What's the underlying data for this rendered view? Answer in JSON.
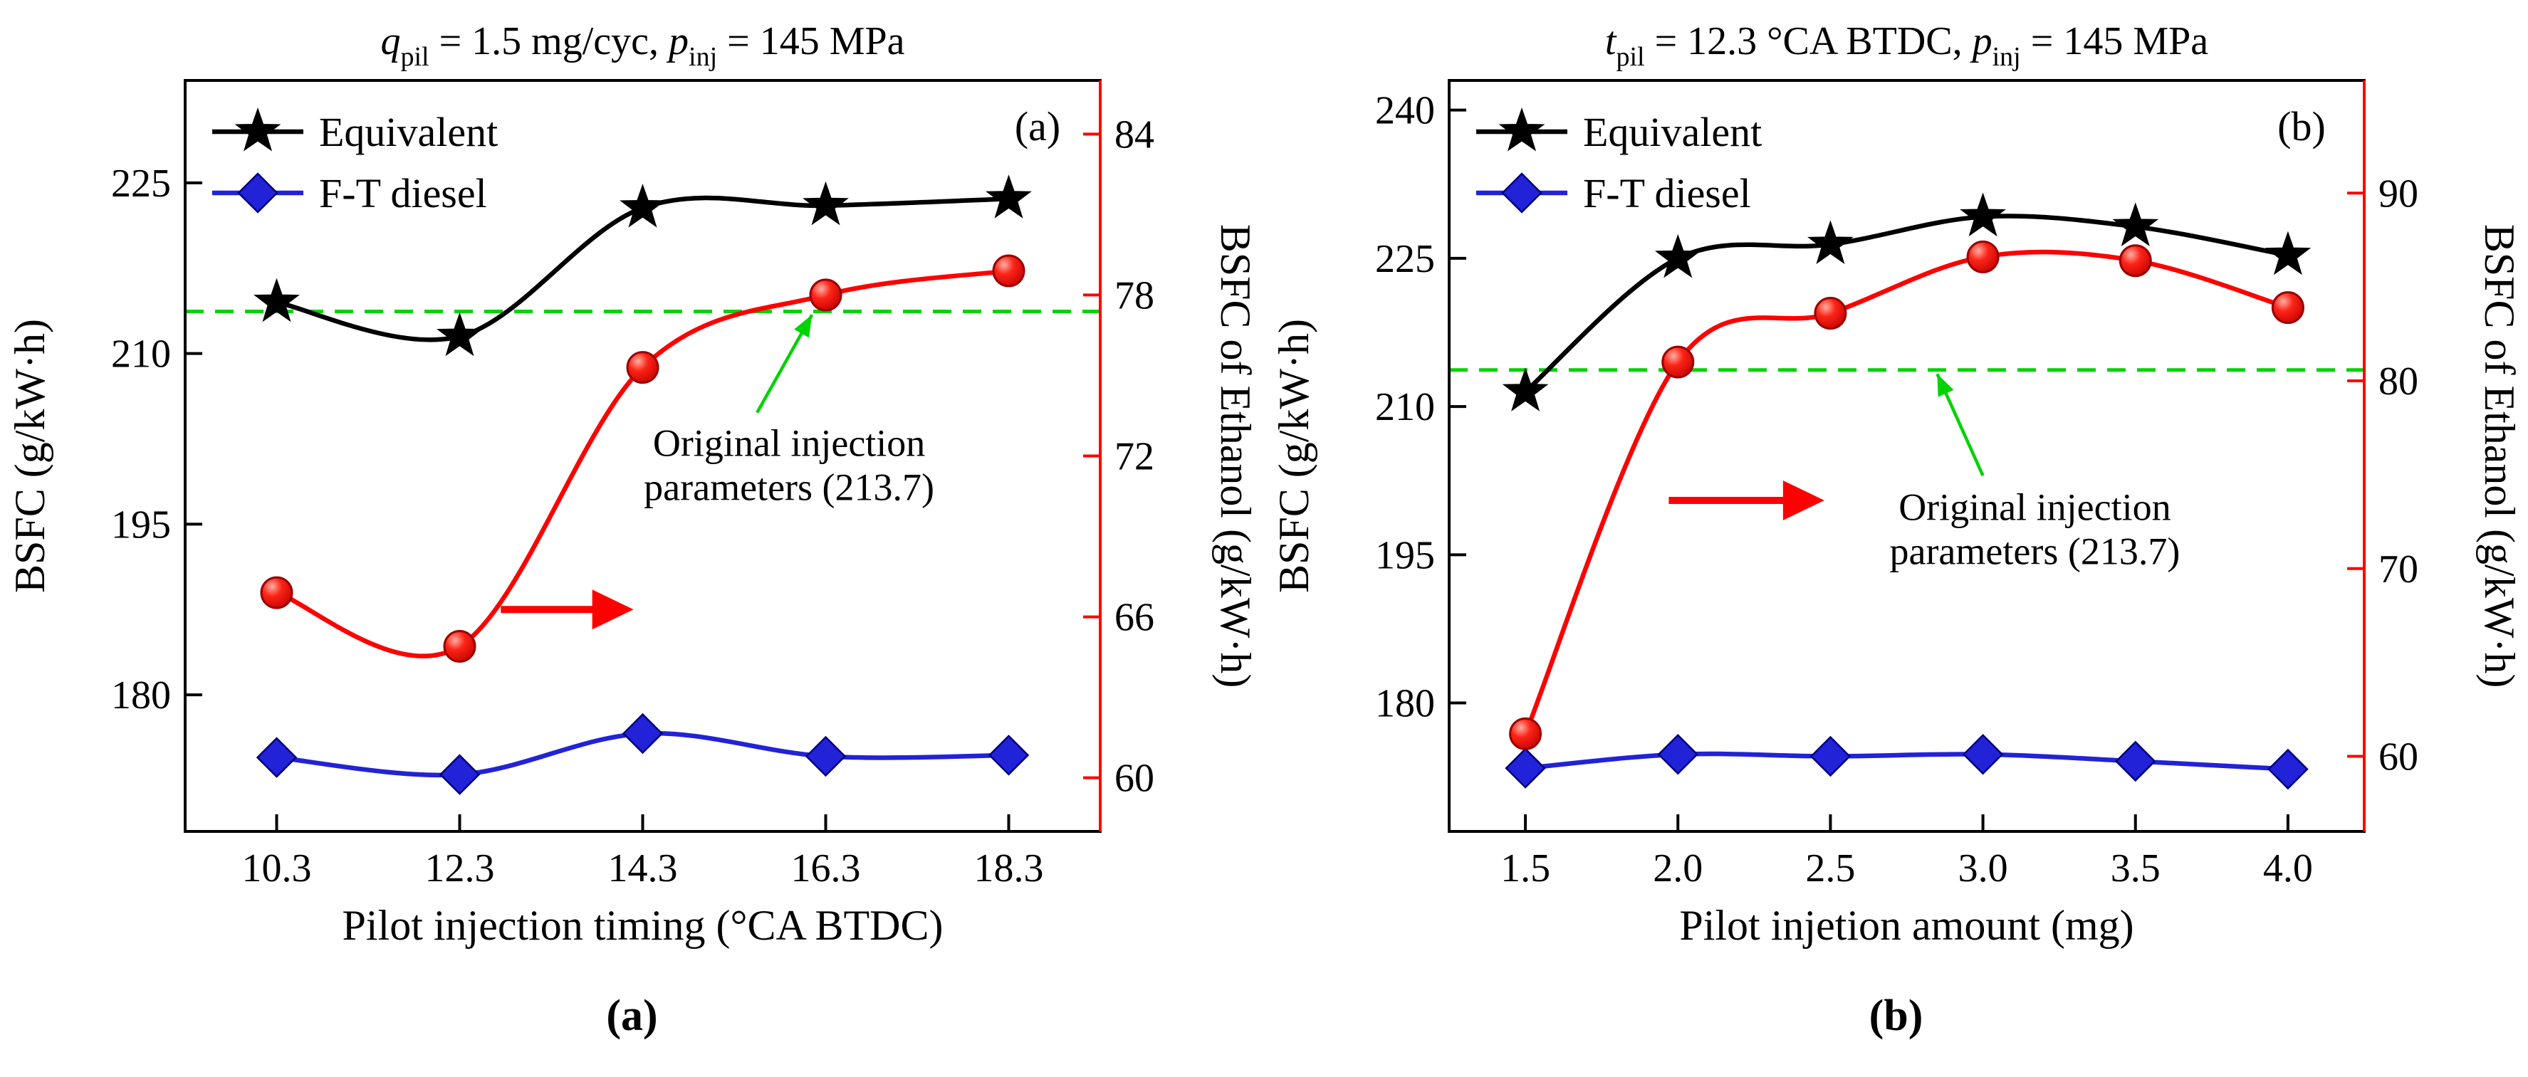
{
  "colors": {
    "black": "#000000",
    "red": "#ff0000",
    "red_dark": "#990000",
    "blue": "#2222d8",
    "blue_dark": "#000080",
    "green": "#00d300",
    "white": "#ffffff"
  },
  "chart_data": [
    {
      "type": "line",
      "caption": "(a)",
      "corner_label": "(a)",
      "title_parts": [
        {
          "text": "q",
          "italic": true
        },
        {
          "text": "pil",
          "sub": true
        },
        {
          "text": " = 1.5 mg/cyc, "
        },
        {
          "text": "p",
          "italic": true
        },
        {
          "text": "inj",
          "sub": true
        },
        {
          "text": " = 145 MPa"
        }
      ],
      "x_axis": {
        "label": "Pilot injection timing (°CA BTDC)",
        "lim": [
          9.3,
          19.3
        ],
        "ticks": [
          10.3,
          12.3,
          14.3,
          16.3,
          18.3
        ],
        "tick_labels": [
          "10.3",
          "12.3",
          "14.3",
          "16.3",
          "18.3"
        ]
      },
      "y_left": {
        "label": "BSFC (g/kW·h)",
        "lim": [
          168,
          234
        ],
        "ticks": [
          180,
          195,
          210,
          225
        ],
        "tick_labels": [
          "180",
          "195",
          "210",
          "225"
        ]
      },
      "y_right": {
        "label": "BSFC of Ethanol (g/kW·h)",
        "lim": [
          58,
          86
        ],
        "ticks": [
          60,
          66,
          72,
          78,
          84
        ],
        "tick_labels": [
          "60",
          "66",
          "72",
          "78",
          "84"
        ]
      },
      "series": [
        {
          "name": "Equivalent",
          "axis": "left",
          "marker": "star",
          "color": "#000000",
          "in_legend": true,
          "values": [
            214.5,
            211.5,
            222.8,
            223.0,
            223.6
          ]
        },
        {
          "name": "F-T diesel",
          "axis": "left",
          "marker": "diamond",
          "color": "#2222d8",
          "in_legend": true,
          "values": [
            174.5,
            173.0,
            176.6,
            174.6,
            174.7
          ]
        },
        {
          "name": "BSFC of Ethanol",
          "axis": "right",
          "marker": "circle",
          "color": "#ff0000",
          "in_legend": false,
          "values": [
            66.9,
            64.9,
            75.3,
            78.0,
            78.9
          ]
        }
      ],
      "reference_line": {
        "axis": "left",
        "value": 213.7
      },
      "annotation": {
        "lines": [
          "Original injection",
          "parameters (213.7)"
        ],
        "x": 15.9,
        "y_left": 201,
        "arrow_tail": [
          15.55,
          204.8
        ],
        "arrow_tip": [
          16.15,
          213.4
        ]
      },
      "axis_arrow": {
        "x1": 12.75,
        "x2": 14.2,
        "y_left": 187.5
      }
    },
    {
      "type": "line",
      "caption": "(b)",
      "corner_label": "(b)",
      "title_parts": [
        {
          "text": "t",
          "italic": true
        },
        {
          "text": "pil",
          "sub": true
        },
        {
          "text": " = 12.3 °CA BTDC, "
        },
        {
          "text": "p",
          "italic": true
        },
        {
          "text": "inj",
          "sub": true
        },
        {
          "text": " = 145 MPa"
        }
      ],
      "x_axis": {
        "label": "Pilot injetion amount (mg)",
        "lim": [
          1.25,
          4.25
        ],
        "ticks": [
          1.5,
          2.0,
          2.5,
          3.0,
          3.5,
          4.0
        ],
        "tick_labels": [
          "1.5",
          "2.0",
          "2.5",
          "3.0",
          "3.5",
          "4.0"
        ]
      },
      "y_left": {
        "label": "BSFC (g/kW·h)",
        "lim": [
          167,
          243
        ],
        "ticks": [
          180,
          195,
          210,
          225,
          240
        ],
        "tick_labels": [
          "180",
          "195",
          "210",
          "225",
          "240"
        ]
      },
      "y_right": {
        "label": "BSFC of Ethanol (g/kW·h)",
        "lim": [
          56,
          96
        ],
        "ticks": [
          60,
          70,
          80,
          90
        ],
        "tick_labels": [
          "60",
          "70",
          "80",
          "90"
        ]
      },
      "series": [
        {
          "name": "Equivalent",
          "axis": "left",
          "marker": "star",
          "color": "#000000",
          "in_legend": true,
          "values": [
            211.5,
            225.0,
            226.4,
            229.2,
            228.2,
            225.3
          ]
        },
        {
          "name": "F-T diesel",
          "axis": "left",
          "marker": "diamond",
          "color": "#2222d8",
          "in_legend": true,
          "values": [
            173.4,
            174.8,
            174.6,
            174.8,
            174.1,
            173.3
          ]
        },
        {
          "name": "BSFC of Ethanol",
          "axis": "right",
          "marker": "circle",
          "color": "#ff0000",
          "in_legend": false,
          "values": [
            61.2,
            81.0,
            83.6,
            86.6,
            86.4,
            83.9
          ]
        }
      ],
      "reference_line": {
        "axis": "left",
        "value": 213.7
      },
      "annotation": {
        "lines": [
          "Original injection",
          "parameters (213.7)"
        ],
        "x": 3.17,
        "y_left": 198.5,
        "arrow_tail": [
          3.0,
          203.0
        ],
        "arrow_tip": [
          2.85,
          213.3
        ]
      },
      "axis_arrow": {
        "x1": 1.97,
        "x2": 2.48,
        "y_left": 200.5
      }
    }
  ]
}
